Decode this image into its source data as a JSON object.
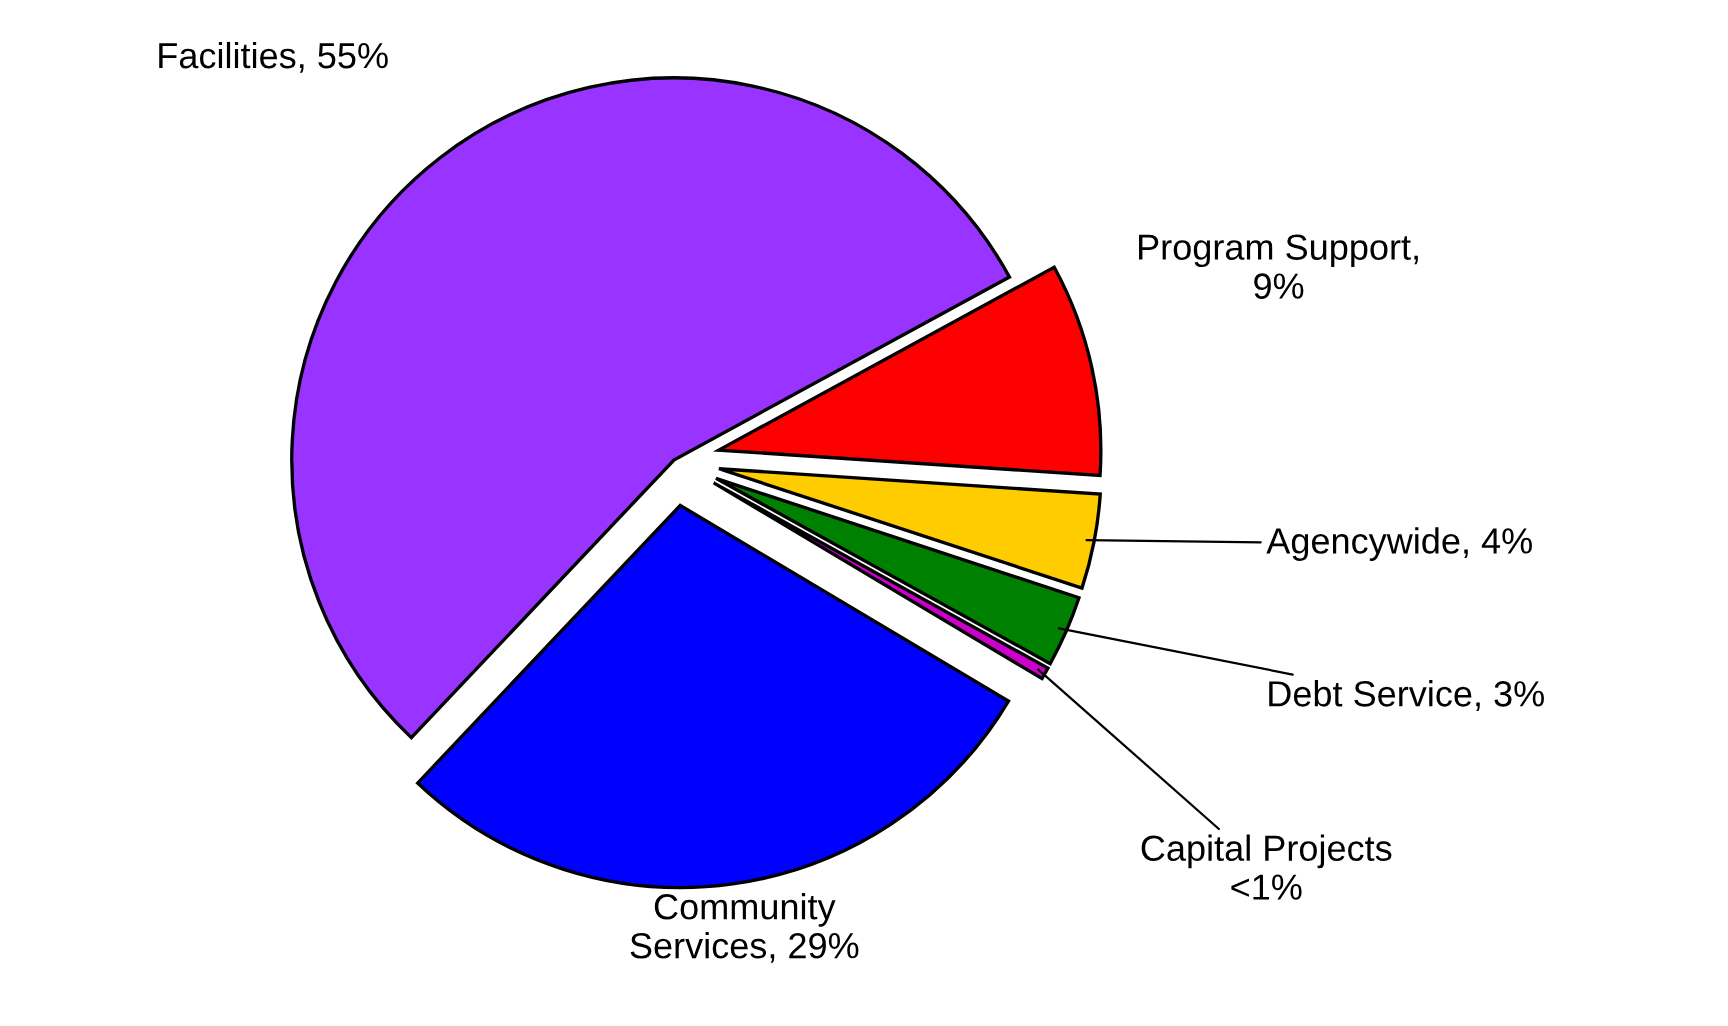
{
  "chart_data": {
    "type": "pie",
    "categories": [
      "Facilities, 55%",
      "Community\nServices, 29%",
      "Capital Projects\n<1%",
      "Debt Service, 3%",
      "Agencywide, 4%",
      "Program Support,\n9%"
    ],
    "values": [
      55,
      28.5,
      0.5,
      3,
      4,
      9
    ],
    "colors": [
      "#9933ff",
      "#0000ff",
      "#cc00cc",
      "#008000",
      "#ffcc00",
      "#ff0000"
    ],
    "legend": false
  }
}
